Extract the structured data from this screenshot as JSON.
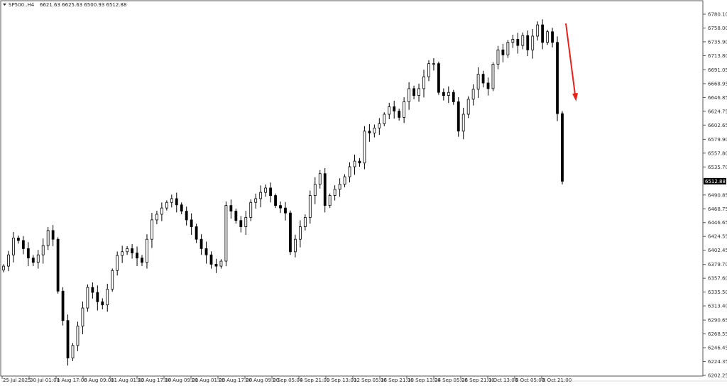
{
  "header": {
    "symbol": "SP500..H4",
    "ohlc": "6621.63 6625.63 6500.93 6512.88"
  },
  "colors": {
    "candle": "#000000",
    "arrow": "#e8221b",
    "background": "#ffffff",
    "price_badge": "#000000"
  },
  "chart_data": {
    "type": "candlestick",
    "title": "",
    "timeframe": "H4",
    "ylim": [
      6202.25,
      6780.1
    ],
    "grid": false,
    "current_price": "6512.88",
    "y_ticks": [
      "6780.10",
      "6758.00",
      "6735.90",
      "6713.80",
      "6691.05",
      "6668.95",
      "6646.85",
      "6624.75",
      "6602.65",
      "6579.90",
      "6557.80",
      "6535.70",
      "6490.85",
      "6468.75",
      "6446.65",
      "6424.55",
      "6402.45",
      "6379.70",
      "6357.60",
      "6335.50",
      "6313.40",
      "6290.65",
      "6268.55",
      "6246.45",
      "6224.35",
      "6202.25"
    ],
    "x_ticks": [
      "25 Jul 2025",
      "30 Jul 01:00",
      "1 Aug 17:00",
      "6 Aug 09:00",
      "11 Aug 01:00",
      "13 Aug 17:00",
      "18 Aug 09:00",
      "21 Aug 01:00",
      "25 Aug 17:00",
      "28 Aug 09:00",
      "2 Sep 05:00",
      "4 Sep 21:00",
      "9 Sep 13:00",
      "12 Sep 05:00",
      "16 Sep 21:00",
      "19 Sep 13:00",
      "24 Sep 05:00",
      "26 Sep 21:00",
      "1 Oct 13:00",
      "6 Oct 05:00",
      "8 Oct 21:00"
    ],
    "closes": [
      6377,
      6395,
      6422,
      6418,
      6405,
      6390,
      6383,
      6395,
      6410,
      6434,
      6420,
      6337,
      6290,
      6230,
      6250,
      6281,
      6310,
      6343,
      6335,
      6320,
      6315,
      6340,
      6370,
      6394,
      6400,
      6405,
      6398,
      6390,
      6383,
      6420,
      6451,
      6460,
      6470,
      6479,
      6485,
      6475,
      6465,
      6451,
      6440,
      6420,
      6405,
      6395,
      6380,
      6377,
      6385,
      6474,
      6465,
      6450,
      6440,
      6455,
      6479,
      6485,
      6495,
      6502,
      6490,
      6474,
      6470,
      6462,
      6400,
      6420,
      6440,
      6455,
      6490,
      6508,
      6525,
      6474,
      6490,
      6500,
      6508,
      6520,
      6536,
      6545,
      6542,
      6593,
      6590,
      6598,
      6605,
      6620,
      6632,
      6625,
      6615,
      6640,
      6661,
      6650,
      6661,
      6680,
      6701,
      6701,
      6655,
      6650,
      6655,
      6640,
      6593,
      6620,
      6644,
      6660,
      6684,
      6670,
      6661,
      6700,
      6723,
      6715,
      6735,
      6740,
      6730,
      6746,
      6723,
      6745,
      6763,
      6735,
      6752,
      6735,
      6621,
      6512.88
    ]
  }
}
